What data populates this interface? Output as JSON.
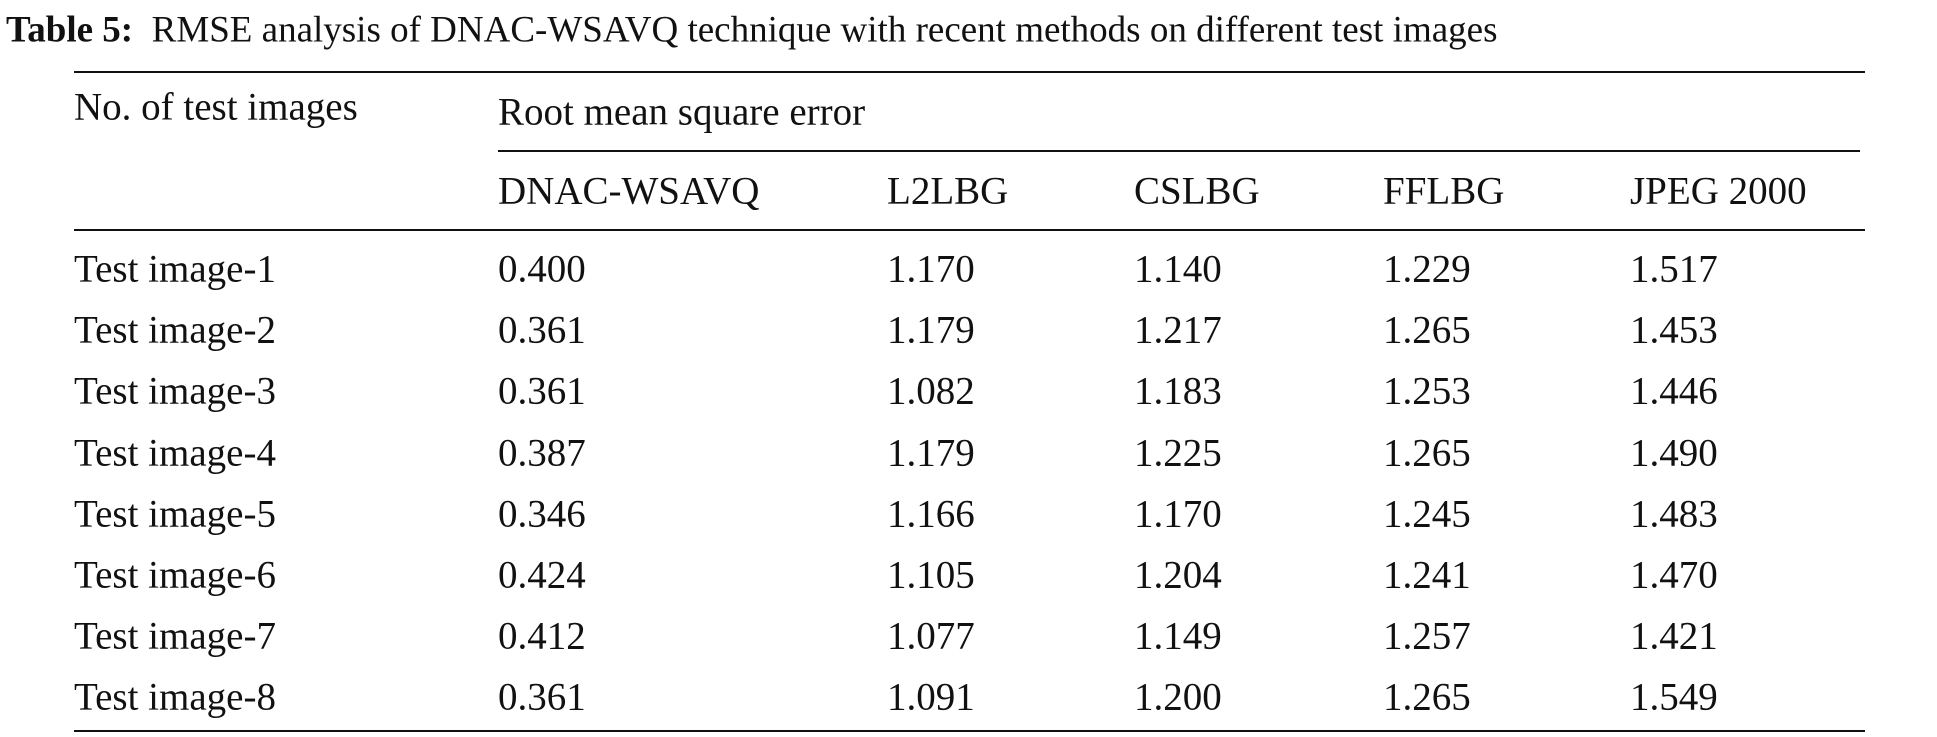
{
  "caption": {
    "label": "Table 5:",
    "text": "RMSE analysis of DNAC-WSAVQ technique with recent methods on different test images"
  },
  "table": {
    "header": {
      "row_label": "No. of test images",
      "group": "Root mean square error",
      "columns": [
        "DNAC-WSAVQ",
        "L2LBG",
        "CSLBG",
        "FFLBG",
        "JPEG 2000"
      ]
    },
    "rows": [
      [
        "Test image-1",
        "0.400",
        "1.170",
        "1.140",
        "1.229",
        "1.517"
      ],
      [
        "Test image-2",
        "0.361",
        "1.179",
        "1.217",
        "1.265",
        "1.453"
      ],
      [
        "Test image-3",
        "0.361",
        "1.082",
        "1.183",
        "1.253",
        "1.446"
      ],
      [
        "Test image-4",
        "0.387",
        "1.179",
        "1.225",
        "1.265",
        "1.490"
      ],
      [
        "Test image-5",
        "0.346",
        "1.166",
        "1.170",
        "1.245",
        "1.483"
      ],
      [
        "Test image-6",
        "0.424",
        "1.105",
        "1.204",
        "1.241",
        "1.470"
      ],
      [
        "Test image-7",
        "0.412",
        "1.077",
        "1.149",
        "1.257",
        "1.421"
      ],
      [
        "Test image-8",
        "0.361",
        "1.091",
        "1.200",
        "1.265",
        "1.549"
      ]
    ]
  }
}
